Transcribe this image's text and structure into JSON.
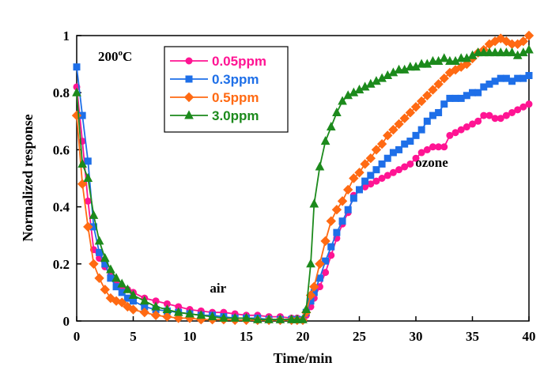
{
  "chart_data": {
    "type": "line",
    "title": "",
    "xlabel": "Time/min",
    "ylabel": "Normalized response",
    "xlim": [
      0,
      40
    ],
    "ylim": [
      0,
      1
    ],
    "xticks": [
      "0",
      "5",
      "10",
      "15",
      "20",
      "25",
      "30",
      "35",
      "40"
    ],
    "yticks": [
      "0",
      "0.2",
      "0.4",
      "0.6",
      "0.8",
      "1"
    ],
    "grid": false,
    "legend_position": "top-left",
    "temperature_label": "200",
    "temperature_superscript": "o",
    "temperature_unit": "C",
    "annotations": [
      {
        "text": "air",
        "x": 12.5,
        "y": 0.1
      },
      {
        "text": "ozone",
        "x": 31.4,
        "y": 0.54
      }
    ],
    "series": [
      {
        "name": "0.05ppm",
        "color": "#ff1493",
        "marker": "circle",
        "x": [
          0,
          0.5,
          1,
          1.5,
          2,
          2.5,
          3,
          3.5,
          4,
          4.5,
          5,
          6,
          7,
          8,
          9,
          10,
          11,
          12,
          13,
          14,
          15,
          16,
          17,
          18,
          19,
          19.5,
          20,
          20.3,
          20.7,
          21,
          21.5,
          22,
          22.5,
          23,
          23.5,
          24,
          24.5,
          25,
          25.5,
          26,
          26.5,
          27,
          27.5,
          28,
          28.5,
          29,
          29.5,
          30,
          30.5,
          31,
          31.5,
          32,
          32.5,
          33,
          33.5,
          34,
          34.5,
          35,
          35.5,
          36,
          36.5,
          37,
          37.5,
          38,
          38.5,
          39,
          39.5,
          40
        ],
        "y": [
          0.82,
          0.63,
          0.42,
          0.25,
          0.22,
          0.19,
          0.16,
          0.14,
          0.12,
          0.11,
          0.1,
          0.08,
          0.07,
          0.06,
          0.05,
          0.04,
          0.035,
          0.03,
          0.03,
          0.025,
          0.02,
          0.02,
          0.015,
          0.015,
          0.01,
          0.01,
          0.005,
          0.02,
          0.05,
          0.08,
          0.12,
          0.17,
          0.23,
          0.29,
          0.34,
          0.38,
          0.44,
          0.46,
          0.47,
          0.48,
          0.49,
          0.5,
          0.51,
          0.52,
          0.53,
          0.54,
          0.55,
          0.57,
          0.59,
          0.6,
          0.61,
          0.61,
          0.61,
          0.65,
          0.66,
          0.67,
          0.68,
          0.69,
          0.7,
          0.72,
          0.72,
          0.71,
          0.71,
          0.72,
          0.73,
          0.74,
          0.75,
          0.76
        ]
      },
      {
        "name": "0.3ppm",
        "color": "#1e6fe8",
        "marker": "square",
        "x": [
          0,
          0.5,
          1,
          1.5,
          2,
          2.5,
          3,
          3.5,
          4,
          4.5,
          5,
          6,
          7,
          8,
          9,
          10,
          11,
          12,
          13,
          14,
          15,
          16,
          17,
          18,
          19,
          19.5,
          20,
          20.3,
          20.7,
          21,
          21.5,
          22,
          22.5,
          23,
          23.5,
          24,
          24.5,
          25,
          25.5,
          26,
          26.5,
          27,
          27.5,
          28,
          28.5,
          29,
          29.5,
          30,
          30.5,
          31,
          31.5,
          32,
          32.5,
          33,
          33.5,
          34,
          34.5,
          35,
          35.5,
          36,
          36.5,
          37,
          37.5,
          38,
          38.5,
          39,
          39.5,
          40
        ],
        "y": [
          0.89,
          0.72,
          0.56,
          0.33,
          0.24,
          0.2,
          0.15,
          0.12,
          0.1,
          0.08,
          0.07,
          0.05,
          0.04,
          0.035,
          0.03,
          0.025,
          0.02,
          0.02,
          0.015,
          0.01,
          0.01,
          0.01,
          0.005,
          0.005,
          0.005,
          0.005,
          0.005,
          0.03,
          0.07,
          0.1,
          0.15,
          0.21,
          0.26,
          0.31,
          0.35,
          0.39,
          0.43,
          0.46,
          0.49,
          0.51,
          0.53,
          0.55,
          0.57,
          0.59,
          0.6,
          0.62,
          0.63,
          0.65,
          0.67,
          0.7,
          0.72,
          0.73,
          0.76,
          0.78,
          0.78,
          0.78,
          0.79,
          0.8,
          0.8,
          0.82,
          0.83,
          0.84,
          0.85,
          0.85,
          0.84,
          0.85,
          0.85,
          0.86
        ]
      },
      {
        "name": "0.5ppm",
        "color": "#ff6a13",
        "marker": "diamond",
        "x": [
          0,
          0.5,
          1,
          1.5,
          2,
          2.5,
          3,
          3.5,
          4,
          4.5,
          5,
          6,
          7,
          8,
          9,
          10,
          11,
          12,
          13,
          14,
          15,
          16,
          17,
          18,
          19,
          19.5,
          20,
          20.3,
          20.7,
          21,
          21.5,
          22,
          22.5,
          23,
          23.5,
          24,
          24.5,
          25,
          25.5,
          26,
          26.5,
          27,
          27.5,
          28,
          28.5,
          29,
          29.5,
          30,
          30.5,
          31,
          31.5,
          32,
          32.5,
          33,
          33.5,
          34,
          34.5,
          35,
          35.5,
          36,
          36.5,
          37,
          37.5,
          38,
          38.5,
          39,
          39.5,
          40
        ],
        "y": [
          0.72,
          0.48,
          0.33,
          0.2,
          0.15,
          0.11,
          0.08,
          0.07,
          0.065,
          0.05,
          0.04,
          0.03,
          0.02,
          0.015,
          0.01,
          0.01,
          0.005,
          0.005,
          0.005,
          0.003,
          0.003,
          0.003,
          0.003,
          0.003,
          0.003,
          0.003,
          0.003,
          0.03,
          0.09,
          0.12,
          0.2,
          0.28,
          0.35,
          0.39,
          0.42,
          0.46,
          0.5,
          0.52,
          0.55,
          0.57,
          0.6,
          0.62,
          0.65,
          0.67,
          0.69,
          0.71,
          0.73,
          0.75,
          0.77,
          0.79,
          0.81,
          0.83,
          0.85,
          0.87,
          0.88,
          0.89,
          0.9,
          0.92,
          0.94,
          0.95,
          0.97,
          0.98,
          0.99,
          0.98,
          0.97,
          0.97,
          0.98,
          1.0
        ]
      },
      {
        "name": "3.0ppm",
        "color": "#1c8a1c",
        "marker": "triangle",
        "x": [
          0,
          0.5,
          1,
          1.5,
          2,
          2.5,
          3,
          3.5,
          4,
          4.5,
          5,
          6,
          7,
          8,
          9,
          10,
          11,
          12,
          13,
          14,
          15,
          16,
          17,
          18,
          19,
          19.5,
          20,
          20.3,
          20.7,
          21,
          21.5,
          22,
          22.5,
          23,
          23.5,
          24,
          24.5,
          25,
          25.5,
          26,
          26.5,
          27,
          27.5,
          28,
          28.5,
          29,
          29.5,
          30,
          30.5,
          31,
          31.5,
          32,
          32.5,
          33,
          33.5,
          34,
          34.5,
          35,
          35.5,
          36,
          36.5,
          37,
          37.5,
          38,
          38.5,
          39,
          39.5,
          40
        ],
        "y": [
          0.8,
          0.55,
          0.5,
          0.37,
          0.28,
          0.22,
          0.18,
          0.15,
          0.13,
          0.11,
          0.09,
          0.07,
          0.05,
          0.04,
          0.03,
          0.025,
          0.02,
          0.015,
          0.01,
          0.01,
          0.01,
          0.005,
          0.005,
          0.005,
          0.005,
          0.005,
          0.005,
          0.04,
          0.2,
          0.41,
          0.54,
          0.63,
          0.68,
          0.73,
          0.77,
          0.79,
          0.8,
          0.81,
          0.82,
          0.83,
          0.84,
          0.85,
          0.86,
          0.87,
          0.88,
          0.88,
          0.89,
          0.89,
          0.9,
          0.9,
          0.91,
          0.91,
          0.92,
          0.91,
          0.91,
          0.92,
          0.92,
          0.93,
          0.94,
          0.94,
          0.94,
          0.94,
          0.94,
          0.94,
          0.94,
          0.93,
          0.94,
          0.95
        ]
      }
    ]
  }
}
